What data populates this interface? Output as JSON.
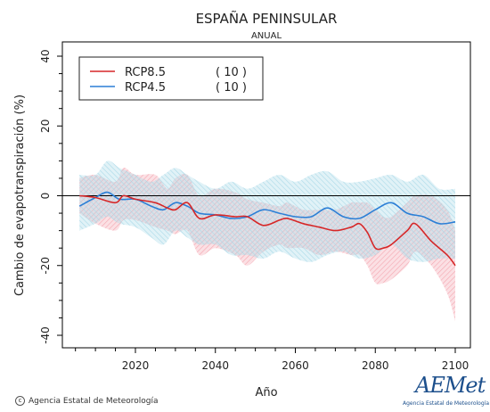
{
  "chart_data": {
    "type": "line",
    "title": "ESPAÑA PENINSULAR",
    "subtitle": "ANUAL",
    "xlabel": "Año",
    "ylabel": "Cambio de evapotranspiración (%)",
    "xlim": [
      2005,
      2100
    ],
    "ylim": [
      -40,
      40
    ],
    "x_ticks": [
      2020,
      2040,
      2060,
      2080,
      2100
    ],
    "y_ticks": [
      -40,
      -20,
      0,
      20,
      40
    ],
    "legend_position": "top-left",
    "zero_line": true,
    "series": [
      {
        "name": "RCP8.5",
        "count": "( 10 )",
        "color": "#d62728",
        "band_color": "#f4a6b0",
        "x": [
          2006,
          2010,
          2015,
          2017,
          2020,
          2025,
          2028,
          2030,
          2033,
          2036,
          2040,
          2045,
          2048,
          2052,
          2056,
          2058,
          2062,
          2066,
          2070,
          2074,
          2076,
          2078,
          2080,
          2082,
          2084,
          2088,
          2090,
          2094,
          2098,
          2100
        ],
        "values": [
          0,
          -0.5,
          -2,
          0,
          -1,
          -2,
          -3.5,
          -4,
          -2,
          -6.5,
          -5.5,
          -6,
          -6,
          -8.5,
          -7,
          -6.5,
          -8,
          -9,
          -10,
          -9,
          -8,
          -10.5,
          -15,
          -15,
          -14,
          -10,
          -8,
          -13,
          -17,
          -20
        ],
        "upper": [
          5,
          6,
          4,
          8,
          6,
          6,
          2,
          5,
          6,
          0,
          2,
          1,
          -1,
          -2,
          -3,
          -2,
          -4,
          -4,
          -4,
          -2,
          -2,
          -2,
          -4,
          -6,
          -6,
          -2,
          0,
          0,
          -4,
          -10
        ],
        "lower": [
          -5,
          -8,
          -10,
          -7,
          -7,
          -9,
          -10,
          -11,
          -10,
          -17,
          -15,
          -17,
          -20,
          -16,
          -14,
          -15,
          -15,
          -17,
          -16,
          -17,
          -17,
          -20,
          -25,
          -25,
          -24,
          -20,
          -16,
          -20,
          -28,
          -36
        ]
      },
      {
        "name": "RCP4.5",
        "count": "( 10 )",
        "color": "#2c7fd6",
        "band_color": "#a9d9e8",
        "x": [
          2006,
          2010,
          2013,
          2016,
          2020,
          2024,
          2027,
          2030,
          2033,
          2036,
          2040,
          2044,
          2048,
          2052,
          2056,
          2060,
          2064,
          2068,
          2072,
          2076,
          2080,
          2084,
          2088,
          2092,
          2096,
          2100
        ],
        "values": [
          -3,
          -0.5,
          1,
          -1,
          -1,
          -3,
          -4,
          -2,
          -3,
          -5,
          -5.5,
          -6.5,
          -6,
          -4,
          -5,
          -6,
          -6,
          -3.5,
          -6,
          -6.5,
          -4,
          -2,
          -5,
          -6,
          -8,
          -7.5
        ],
        "upper": [
          6,
          6,
          10,
          8,
          6,
          4,
          6,
          8,
          6,
          4,
          2,
          4,
          2,
          4,
          6,
          4,
          6,
          7,
          4,
          4,
          5,
          6,
          4,
          6,
          2,
          2
        ],
        "lower": [
          -10,
          -8,
          -6,
          -8,
          -9,
          -12,
          -14,
          -10,
          -12,
          -14,
          -14,
          -17,
          -17,
          -18,
          -16,
          -18,
          -19,
          -17,
          -16,
          -18,
          -17,
          -14,
          -18,
          -19,
          -18,
          -18
        ]
      }
    ]
  },
  "footer": {
    "credit": "Agencia Estatal de Meteorología",
    "logo_text": "AEMet",
    "logo_tagline": "Agencia Estatal de Meteorología"
  }
}
